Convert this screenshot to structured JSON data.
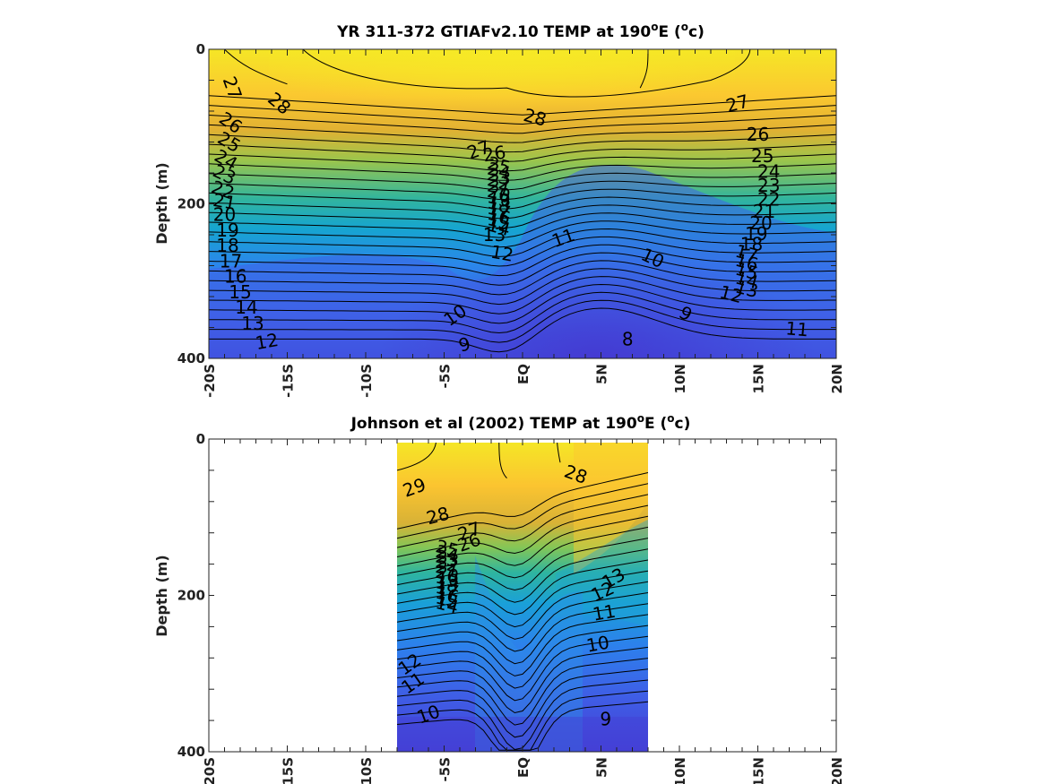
{
  "chart_data": [
    {
      "type": "contour",
      "title_main": "YR 311-372 GTIAFv2.10 TEMP at 190",
      "title_sup": "o",
      "title_end": "E (",
      "title_sup2": "o",
      "title_close": "c)",
      "ylabel": "Depth (m)",
      "xlim": [
        -20,
        20
      ],
      "ylim": [
        0,
        400
      ],
      "xticks": [
        -20,
        -15,
        -10,
        -5,
        0,
        5,
        10,
        15,
        20
      ],
      "xtick_labels": [
        "-20S",
        "-15S",
        "-10S",
        "-5S",
        "EQ",
        "5N",
        "10N",
        "15N",
        "20N"
      ],
      "yticks": [
        0,
        200,
        400
      ],
      "ytick_labels": [
        "0",
        "200",
        "400"
      ],
      "data_xrange": [
        -20,
        20
      ],
      "contour_labels": [
        {
          "text": "27",
          "x": -18.5,
          "d": 50,
          "rot": 70
        },
        {
          "text": "28",
          "x": -15.5,
          "d": 70,
          "rot": 40
        },
        {
          "text": "28",
          "x": 0.8,
          "d": 88,
          "rot": 15
        },
        {
          "text": "27",
          "x": 13.7,
          "d": 70,
          "rot": -15
        },
        {
          "text": "26",
          "x": -18.6,
          "d": 95,
          "rot": 35
        },
        {
          "text": "25",
          "x": -18.7,
          "d": 120,
          "rot": 30
        },
        {
          "text": "24",
          "x": -18.9,
          "d": 143,
          "rot": 30
        },
        {
          "text": "23",
          "x": -19.0,
          "d": 162,
          "rot": 25
        },
        {
          "text": "22",
          "x": -19.1,
          "d": 182,
          "rot": 20
        },
        {
          "text": "21",
          "x": -19.0,
          "d": 197,
          "rot": 10
        },
        {
          "text": "20",
          "x": -19.0,
          "d": 214,
          "rot": 0
        },
        {
          "text": "19",
          "x": -18.8,
          "d": 234,
          "rot": 0
        },
        {
          "text": "18",
          "x": -18.8,
          "d": 254,
          "rot": 0
        },
        {
          "text": "17",
          "x": -18.6,
          "d": 274,
          "rot": 0
        },
        {
          "text": "16",
          "x": -18.3,
          "d": 294,
          "rot": 0
        },
        {
          "text": "15",
          "x": -18.0,
          "d": 314,
          "rot": 0
        },
        {
          "text": "14",
          "x": -17.6,
          "d": 334,
          "rot": 0
        },
        {
          "text": "13",
          "x": -17.2,
          "d": 355,
          "rot": 0
        },
        {
          "text": "12",
          "x": -16.3,
          "d": 378,
          "rot": -10
        },
        {
          "text": "27",
          "x": -2.8,
          "d": 130,
          "rot": -20
        },
        {
          "text": "26",
          "x": -1.8,
          "d": 135,
          "rot": -10
        },
        {
          "text": "13",
          "x": -1.8,
          "d": 240,
          "rot": 0
        },
        {
          "text": "12",
          "x": -1.3,
          "d": 264,
          "rot": 10
        },
        {
          "text": "11",
          "x": 2.6,
          "d": 244,
          "rot": -20
        },
        {
          "text": "10",
          "x": 8.3,
          "d": 270,
          "rot": 25
        },
        {
          "text": "10",
          "x": -4.3,
          "d": 344,
          "rot": -35
        },
        {
          "text": "9",
          "x": -3.7,
          "d": 382,
          "rot": -15
        },
        {
          "text": "9",
          "x": 10.4,
          "d": 342,
          "rot": 30
        },
        {
          "text": "8",
          "x": 6.7,
          "d": 375,
          "rot": 0
        },
        {
          "text": "11",
          "x": 17.5,
          "d": 362,
          "rot": 5
        },
        {
          "text": "26",
          "x": 15.0,
          "d": 110,
          "rot": 0
        },
        {
          "text": "25",
          "x": 15.3,
          "d": 138,
          "rot": 0
        },
        {
          "text": "24",
          "x": 15.7,
          "d": 158,
          "rot": 0
        },
        {
          "text": "23",
          "x": 15.7,
          "d": 176,
          "rot": 0
        },
        {
          "text": "22",
          "x": 15.7,
          "d": 194,
          "rot": 0
        },
        {
          "text": "21",
          "x": 15.4,
          "d": 210,
          "rot": 0
        },
        {
          "text": "20",
          "x": 15.2,
          "d": 225,
          "rot": 0
        },
        {
          "text": "19",
          "x": 14.9,
          "d": 239,
          "rot": 0
        },
        {
          "text": "18",
          "x": 14.6,
          "d": 252,
          "rot": 0
        },
        {
          "text": "12",
          "x": 13.3,
          "d": 317,
          "rot": 15
        }
      ],
      "crowded_stack": {
        "x": -1.5,
        "labels": [
          "25",
          "24",
          "23",
          "22",
          "21",
          "20",
          "19",
          "18",
          "17",
          "16",
          "15",
          "14"
        ],
        "d_from": 150,
        "d_to": 230
      },
      "crowded_stack_right": {
        "x": 14.3,
        "labels": [
          "17",
          "16",
          "15",
          "14",
          "13"
        ],
        "d_from": 264,
        "d_to": 310
      }
    },
    {
      "type": "contour",
      "title_main": "Johnson et al (2002) TEMP at 190",
      "title_sup": "o",
      "title_end": "E (",
      "title_sup2": "o",
      "title_close": "c)",
      "ylabel": "Depth (m)",
      "xlim": [
        -20,
        20
      ],
      "ylim": [
        0,
        400
      ],
      "xticks": [
        -20,
        -15,
        -10,
        -5,
        0,
        5,
        10,
        15,
        20
      ],
      "xtick_labels": [
        "-20S",
        "-15S",
        "-10S",
        "-5S",
        "EQ",
        "5N",
        "10N",
        "15N",
        "20N"
      ],
      "yticks": [
        0,
        200,
        400
      ],
      "ytick_labels": [
        "0",
        "200",
        "400"
      ],
      "data_xrange": [
        -8,
        8
      ],
      "contour_labels": [
        {
          "text": "29",
          "x": -6.9,
          "d": 62,
          "rot": -20
        },
        {
          "text": "28",
          "x": 3.4,
          "d": 45,
          "rot": 20
        },
        {
          "text": "28",
          "x": -5.4,
          "d": 98,
          "rot": -15
        },
        {
          "text": "27",
          "x": -3.4,
          "d": 118,
          "rot": -20
        },
        {
          "text": "26",
          "x": -3.4,
          "d": 132,
          "rot": -20
        },
        {
          "text": "13",
          "x": 5.8,
          "d": 178,
          "rot": -30
        },
        {
          "text": "12",
          "x": 5.1,
          "d": 195,
          "rot": -25
        },
        {
          "text": "11",
          "x": 5.2,
          "d": 222,
          "rot": -10
        },
        {
          "text": "10",
          "x": 4.8,
          "d": 262,
          "rot": -10
        },
        {
          "text": "12",
          "x": -7.2,
          "d": 288,
          "rot": -35
        },
        {
          "text": "11",
          "x": -7.0,
          "d": 312,
          "rot": -35
        },
        {
          "text": "10",
          "x": -6.0,
          "d": 352,
          "rot": -20
        },
        {
          "text": "9",
          "x": 5.3,
          "d": 358,
          "rot": 0
        }
      ],
      "crowded_stack": {
        "x": -4.8,
        "labels": [
          "25",
          "24",
          "23",
          "22",
          "21",
          "20",
          "19",
          "18",
          "17",
          "16",
          "15",
          "14"
        ],
        "d_from": 140,
        "d_to": 212
      }
    }
  ]
}
